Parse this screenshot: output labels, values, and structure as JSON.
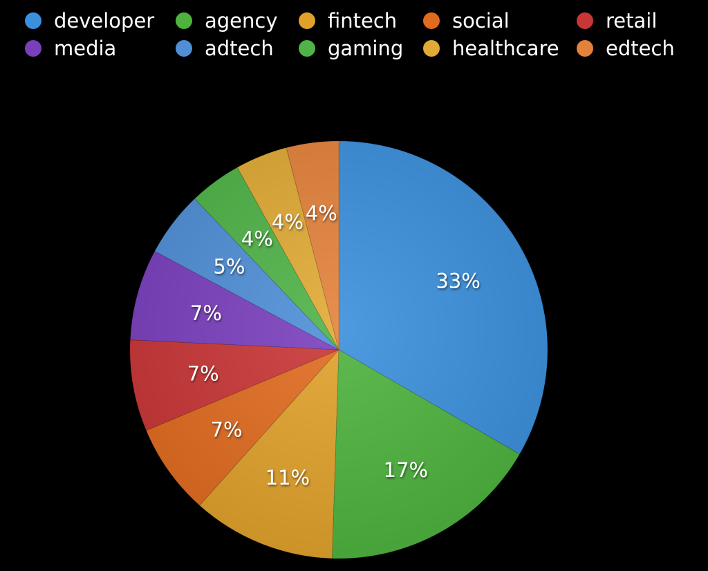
{
  "chart_data": {
    "type": "pie",
    "title": "",
    "legend_position": "top",
    "start_angle_deg": 0,
    "direction": "clockwise",
    "slices": [
      {
        "label": "developer",
        "value": 33,
        "display": "33%",
        "color": "#3b8fdc"
      },
      {
        "label": "agency",
        "value": 17,
        "display": "17%",
        "color": "#4db33d"
      },
      {
        "label": "fintech",
        "value": 11,
        "display": "11%",
        "color": "#e0a12a"
      },
      {
        "label": "social",
        "value": 7,
        "display": "7%",
        "color": "#e06b1f"
      },
      {
        "label": "retail",
        "value": 7,
        "display": "7%",
        "color": "#c93636"
      },
      {
        "label": "media",
        "value": 7,
        "display": "7%",
        "color": "#7a3fbd"
      },
      {
        "label": "adtech",
        "value": 5,
        "display": "5%",
        "color": "#4f8fd6"
      },
      {
        "label": "gaming",
        "value": 4,
        "display": "4%",
        "color": "#4fb347"
      },
      {
        "label": "healthcare",
        "value": 4,
        "display": "4%",
        "color": "#e0aa35"
      },
      {
        "label": "edtech",
        "value": 4,
        "display": "4%",
        "color": "#e3823b"
      }
    ]
  }
}
